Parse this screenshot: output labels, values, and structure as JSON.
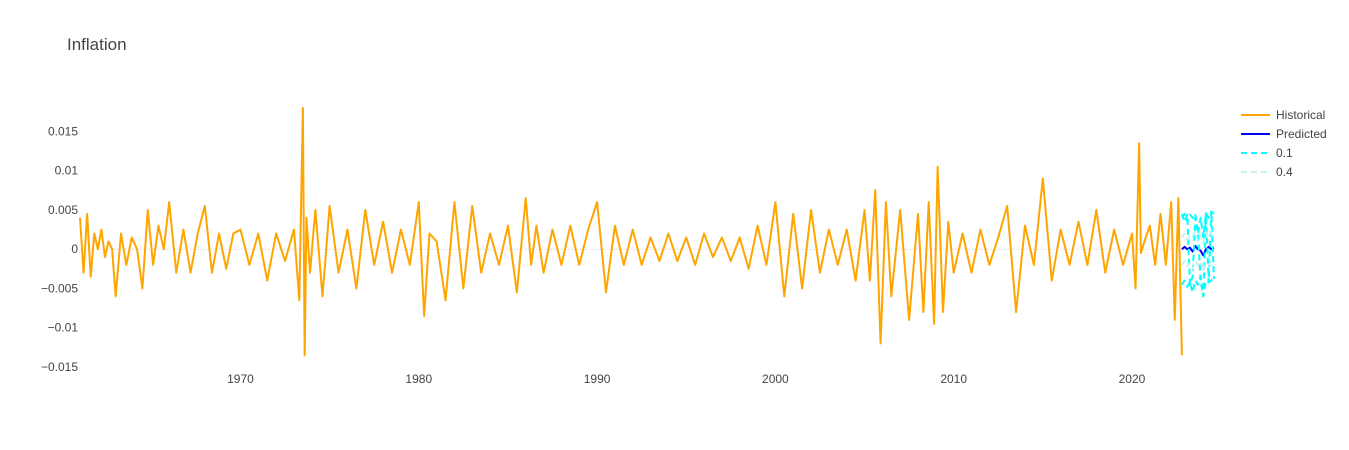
{
  "chart_data": {
    "type": "line",
    "title": "Inflation",
    "xlabel": "",
    "ylabel": "",
    "xlim": [
      1961.0,
      2024.6
    ],
    "ylim": [
      -0.015,
      0.019
    ],
    "x_ticks": [
      1970,
      1980,
      1990,
      2000,
      2010,
      2020
    ],
    "x_tick_labels": [
      "1970",
      "1980",
      "1990",
      "2000",
      "2010",
      "2020"
    ],
    "y_ticks": [
      -0.015,
      -0.01,
      -0.005,
      0,
      0.005,
      0.01,
      0.015
    ],
    "y_tick_labels": [
      "−0.015",
      "−0.01",
      "−0.005",
      "0",
      "0.005",
      "0.01",
      "0.015"
    ],
    "grid": false,
    "legend_position": "top-right",
    "series": [
      {
        "name": "Historical",
        "color": "#FFA500",
        "dash": "solid",
        "x": [
          1961.0,
          1961.2,
          1961.4,
          1961.6,
          1961.8,
          1962.0,
          1962.2,
          1962.4,
          1962.6,
          1962.8,
          1963.0,
          1963.3,
          1963.6,
          1963.9,
          1964.2,
          1964.5,
          1964.8,
          1965.1,
          1965.4,
          1965.7,
          1966.0,
          1966.4,
          1966.8,
          1967.2,
          1967.6,
          1968.0,
          1968.4,
          1968.8,
          1969.2,
          1969.6,
          1970.0,
          1970.5,
          1971.0,
          1971.5,
          1972.0,
          1972.5,
          1973.0,
          1973.3,
          1973.5,
          1973.6,
          1973.7,
          1973.9,
          1974.2,
          1974.6,
          1975.0,
          1975.5,
          1976.0,
          1976.5,
          1977.0,
          1977.5,
          1978.0,
          1978.5,
          1979.0,
          1979.5,
          1980.0,
          1980.3,
          1980.6,
          1981.0,
          1981.5,
          1982.0,
          1982.5,
          1983.0,
          1983.5,
          1984.0,
          1984.5,
          1985.0,
          1985.5,
          1986.0,
          1986.3,
          1986.6,
          1987.0,
          1987.5,
          1988.0,
          1988.5,
          1989.0,
          1989.5,
          1990.0,
          1990.5,
          1991.0,
          1991.5,
          1992.0,
          1992.5,
          1993.0,
          1993.5,
          1994.0,
          1994.5,
          1995.0,
          1995.5,
          1996.0,
          1996.5,
          1997.0,
          1997.5,
          1998.0,
          1998.5,
          1999.0,
          1999.5,
          2000.0,
          2000.5,
          2001.0,
          2001.5,
          2002.0,
          2002.5,
          2003.0,
          2003.5,
          2004.0,
          2004.5,
          2005.0,
          2005.3,
          2005.6,
          2005.9,
          2006.2,
          2006.5,
          2007.0,
          2007.5,
          2008.0,
          2008.3,
          2008.6,
          2008.9,
          2009.1,
          2009.4,
          2009.7,
          2010.0,
          2010.5,
          2011.0,
          2011.5,
          2012.0,
          2012.5,
          2013.0,
          2013.5,
          2014.0,
          2014.5,
          2015.0,
          2015.5,
          2016.0,
          2016.5,
          2017.0,
          2017.5,
          2018.0,
          2018.5,
          2019.0,
          2019.5,
          2020.0,
          2020.2,
          2020.4,
          2020.5,
          2020.7,
          2021.0,
          2021.3,
          2021.6,
          2021.9,
          2022.2,
          2022.4,
          2022.6,
          2022.8
        ],
        "y": [
          0.004,
          -0.003,
          0.0045,
          -0.0035,
          0.002,
          0.0,
          0.0025,
          -0.001,
          0.001,
          0.0,
          -0.006,
          0.002,
          -0.002,
          0.0015,
          0.0,
          -0.005,
          0.005,
          -0.002,
          0.003,
          0.0,
          0.006,
          -0.003,
          0.0025,
          -0.003,
          0.002,
          0.0055,
          -0.003,
          0.002,
          -0.0025,
          0.002,
          0.0025,
          -0.002,
          0.002,
          -0.004,
          0.002,
          -0.0015,
          0.0025,
          -0.0065,
          0.018,
          -0.0135,
          0.004,
          -0.003,
          0.005,
          -0.006,
          0.0055,
          -0.003,
          0.0025,
          -0.005,
          0.005,
          -0.002,
          0.0035,
          -0.003,
          0.0025,
          -0.002,
          0.006,
          -0.0085,
          0.002,
          0.001,
          -0.0065,
          0.006,
          -0.005,
          0.0055,
          -0.003,
          0.002,
          -0.002,
          0.003,
          -0.0055,
          0.0065,
          -0.002,
          0.003,
          -0.003,
          0.0025,
          -0.002,
          0.003,
          -0.002,
          0.0025,
          0.006,
          -0.0055,
          0.003,
          -0.002,
          0.0025,
          -0.002,
          0.0015,
          -0.0015,
          0.002,
          -0.0015,
          0.0015,
          -0.002,
          0.002,
          -0.001,
          0.0015,
          -0.0015,
          0.0015,
          -0.0025,
          0.003,
          -0.002,
          0.006,
          -0.006,
          0.0045,
          -0.005,
          0.005,
          -0.003,
          0.0025,
          -0.002,
          0.0025,
          -0.004,
          0.005,
          -0.004,
          0.0075,
          -0.012,
          0.006,
          -0.006,
          0.005,
          -0.009,
          0.0045,
          -0.008,
          0.006,
          -0.0095,
          0.0105,
          -0.008,
          0.0035,
          -0.003,
          0.002,
          -0.003,
          0.0025,
          -0.002,
          0.0015,
          0.0055,
          -0.008,
          0.003,
          -0.002,
          0.009,
          -0.004,
          0.0025,
          -0.002,
          0.0035,
          -0.002,
          0.005,
          -0.003,
          0.0025,
          -0.002,
          0.002,
          -0.005,
          0.0135,
          -0.0005,
          0.001,
          0.003,
          -0.002,
          0.0045,
          -0.002,
          0.006,
          -0.009,
          0.0065,
          -0.0135
        ]
      },
      {
        "name": "Predicted",
        "color": "#0000FF",
        "dash": "solid",
        "x": [
          2022.8,
          2022.95,
          2023.1,
          2023.25,
          2023.4,
          2023.55,
          2023.7,
          2023.85,
          2024.0,
          2024.15,
          2024.3,
          2024.45,
          2024.6
        ],
        "y": [
          0.0,
          0.0003,
          0.0,
          0.0002,
          -0.0003,
          0.0004,
          0.0,
          -0.0002,
          -0.0008,
          0.0,
          0.0003,
          0.0,
          0.0002
        ]
      },
      {
        "name": "0.1",
        "color": "#00FFFF",
        "dash": "dash",
        "x": [
          2022.8,
          2022.95,
          2023.1,
          2023.25,
          2023.4,
          2023.55,
          2023.7,
          2023.85,
          2024.0,
          2024.15,
          2024.3,
          2024.45,
          2024.6
        ],
        "y": [
          0.0045,
          0.0035,
          0.0044,
          -0.0045,
          -0.0035,
          0.004,
          0.002,
          -0.004,
          -0.006,
          0.0046,
          -0.0042,
          0.0048,
          -0.0038
        ],
        "lower": [
          -0.0045,
          -0.004,
          -0.0048,
          -0.0042,
          -0.0055,
          -0.004,
          -0.0045,
          -0.0035,
          -0.006,
          -0.004,
          -0.0042,
          -0.004,
          -0.0035
        ],
        "upper": [
          0.004,
          0.0045,
          0.0035,
          0.0044,
          0.004,
          0.0045,
          0.002,
          0.004,
          0.0015,
          0.0046,
          0.004,
          0.0048,
          0.0045
        ]
      },
      {
        "name": "0.4",
        "color": "#C8F2F2",
        "dash": "dash",
        "x": [
          2022.8,
          2022.95,
          2023.1,
          2023.25,
          2023.4,
          2023.55,
          2023.7,
          2023.85,
          2024.0,
          2024.15,
          2024.3,
          2024.45,
          2024.6
        ],
        "lower": [
          -0.002,
          -0.0015,
          -0.0022,
          -0.0018,
          -0.0025,
          -0.0015,
          -0.002,
          -0.0015,
          -0.0028,
          -0.0018,
          -0.002,
          -0.0015,
          -0.0015
        ],
        "upper": [
          0.0015,
          0.002,
          0.0012,
          0.0018,
          0.0016,
          0.0022,
          0.001,
          0.0018,
          0.0008,
          0.0022,
          0.0015,
          0.0024,
          0.0018
        ]
      }
    ]
  }
}
